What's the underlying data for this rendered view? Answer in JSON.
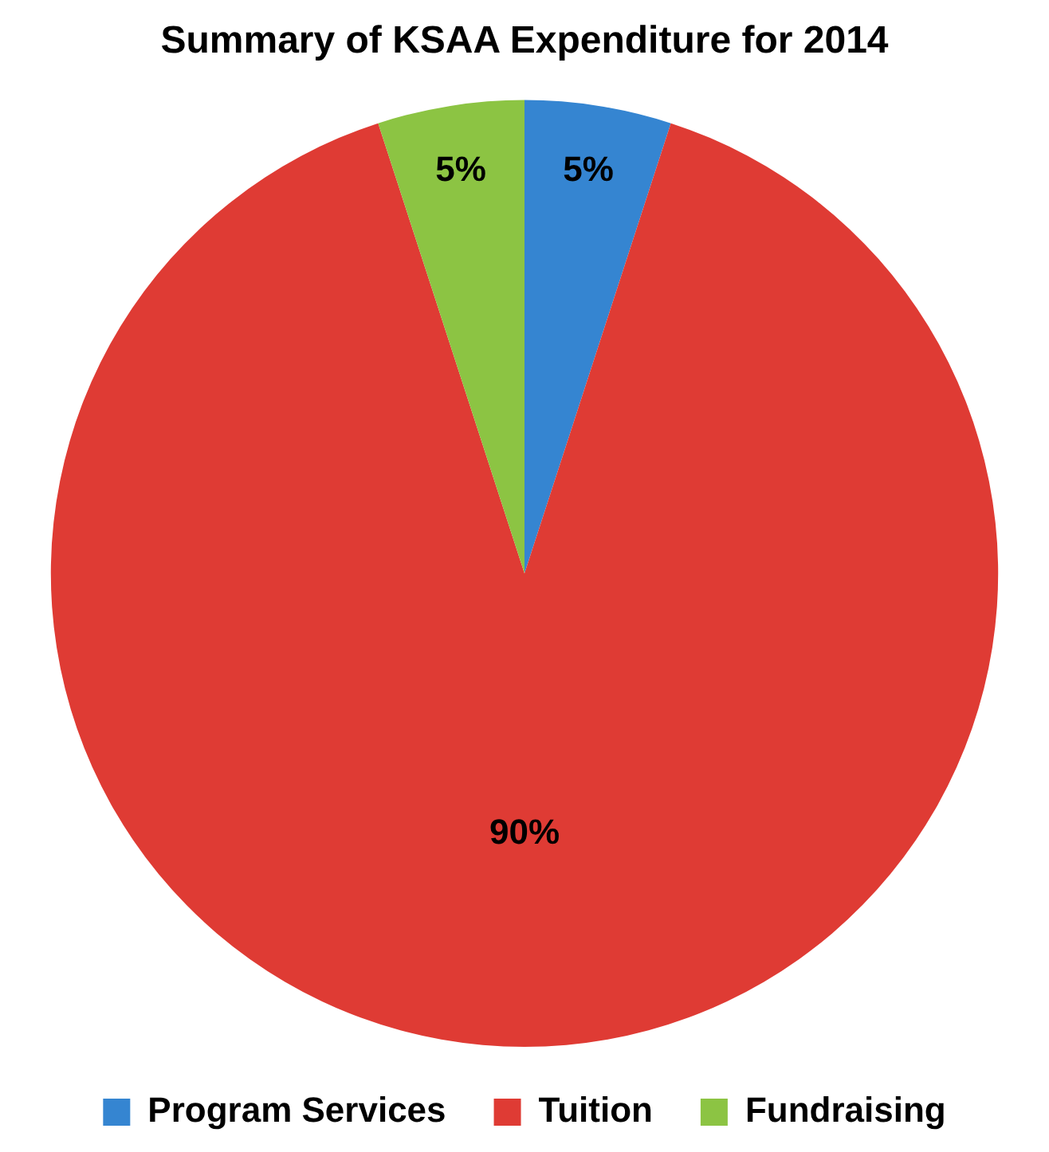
{
  "chart_data": {
    "type": "pie",
    "title": "Summary of KSAA Expenditure for 2014",
    "categories": [
      "Program Services",
      "Tuition",
      "Fundraising"
    ],
    "values": [
      5,
      90,
      5
    ],
    "colors": [
      "#3585d1",
      "#df3b34",
      "#8cc443"
    ],
    "value_labels": [
      "5%",
      "90%",
      "5%"
    ],
    "legend": "bottom"
  }
}
